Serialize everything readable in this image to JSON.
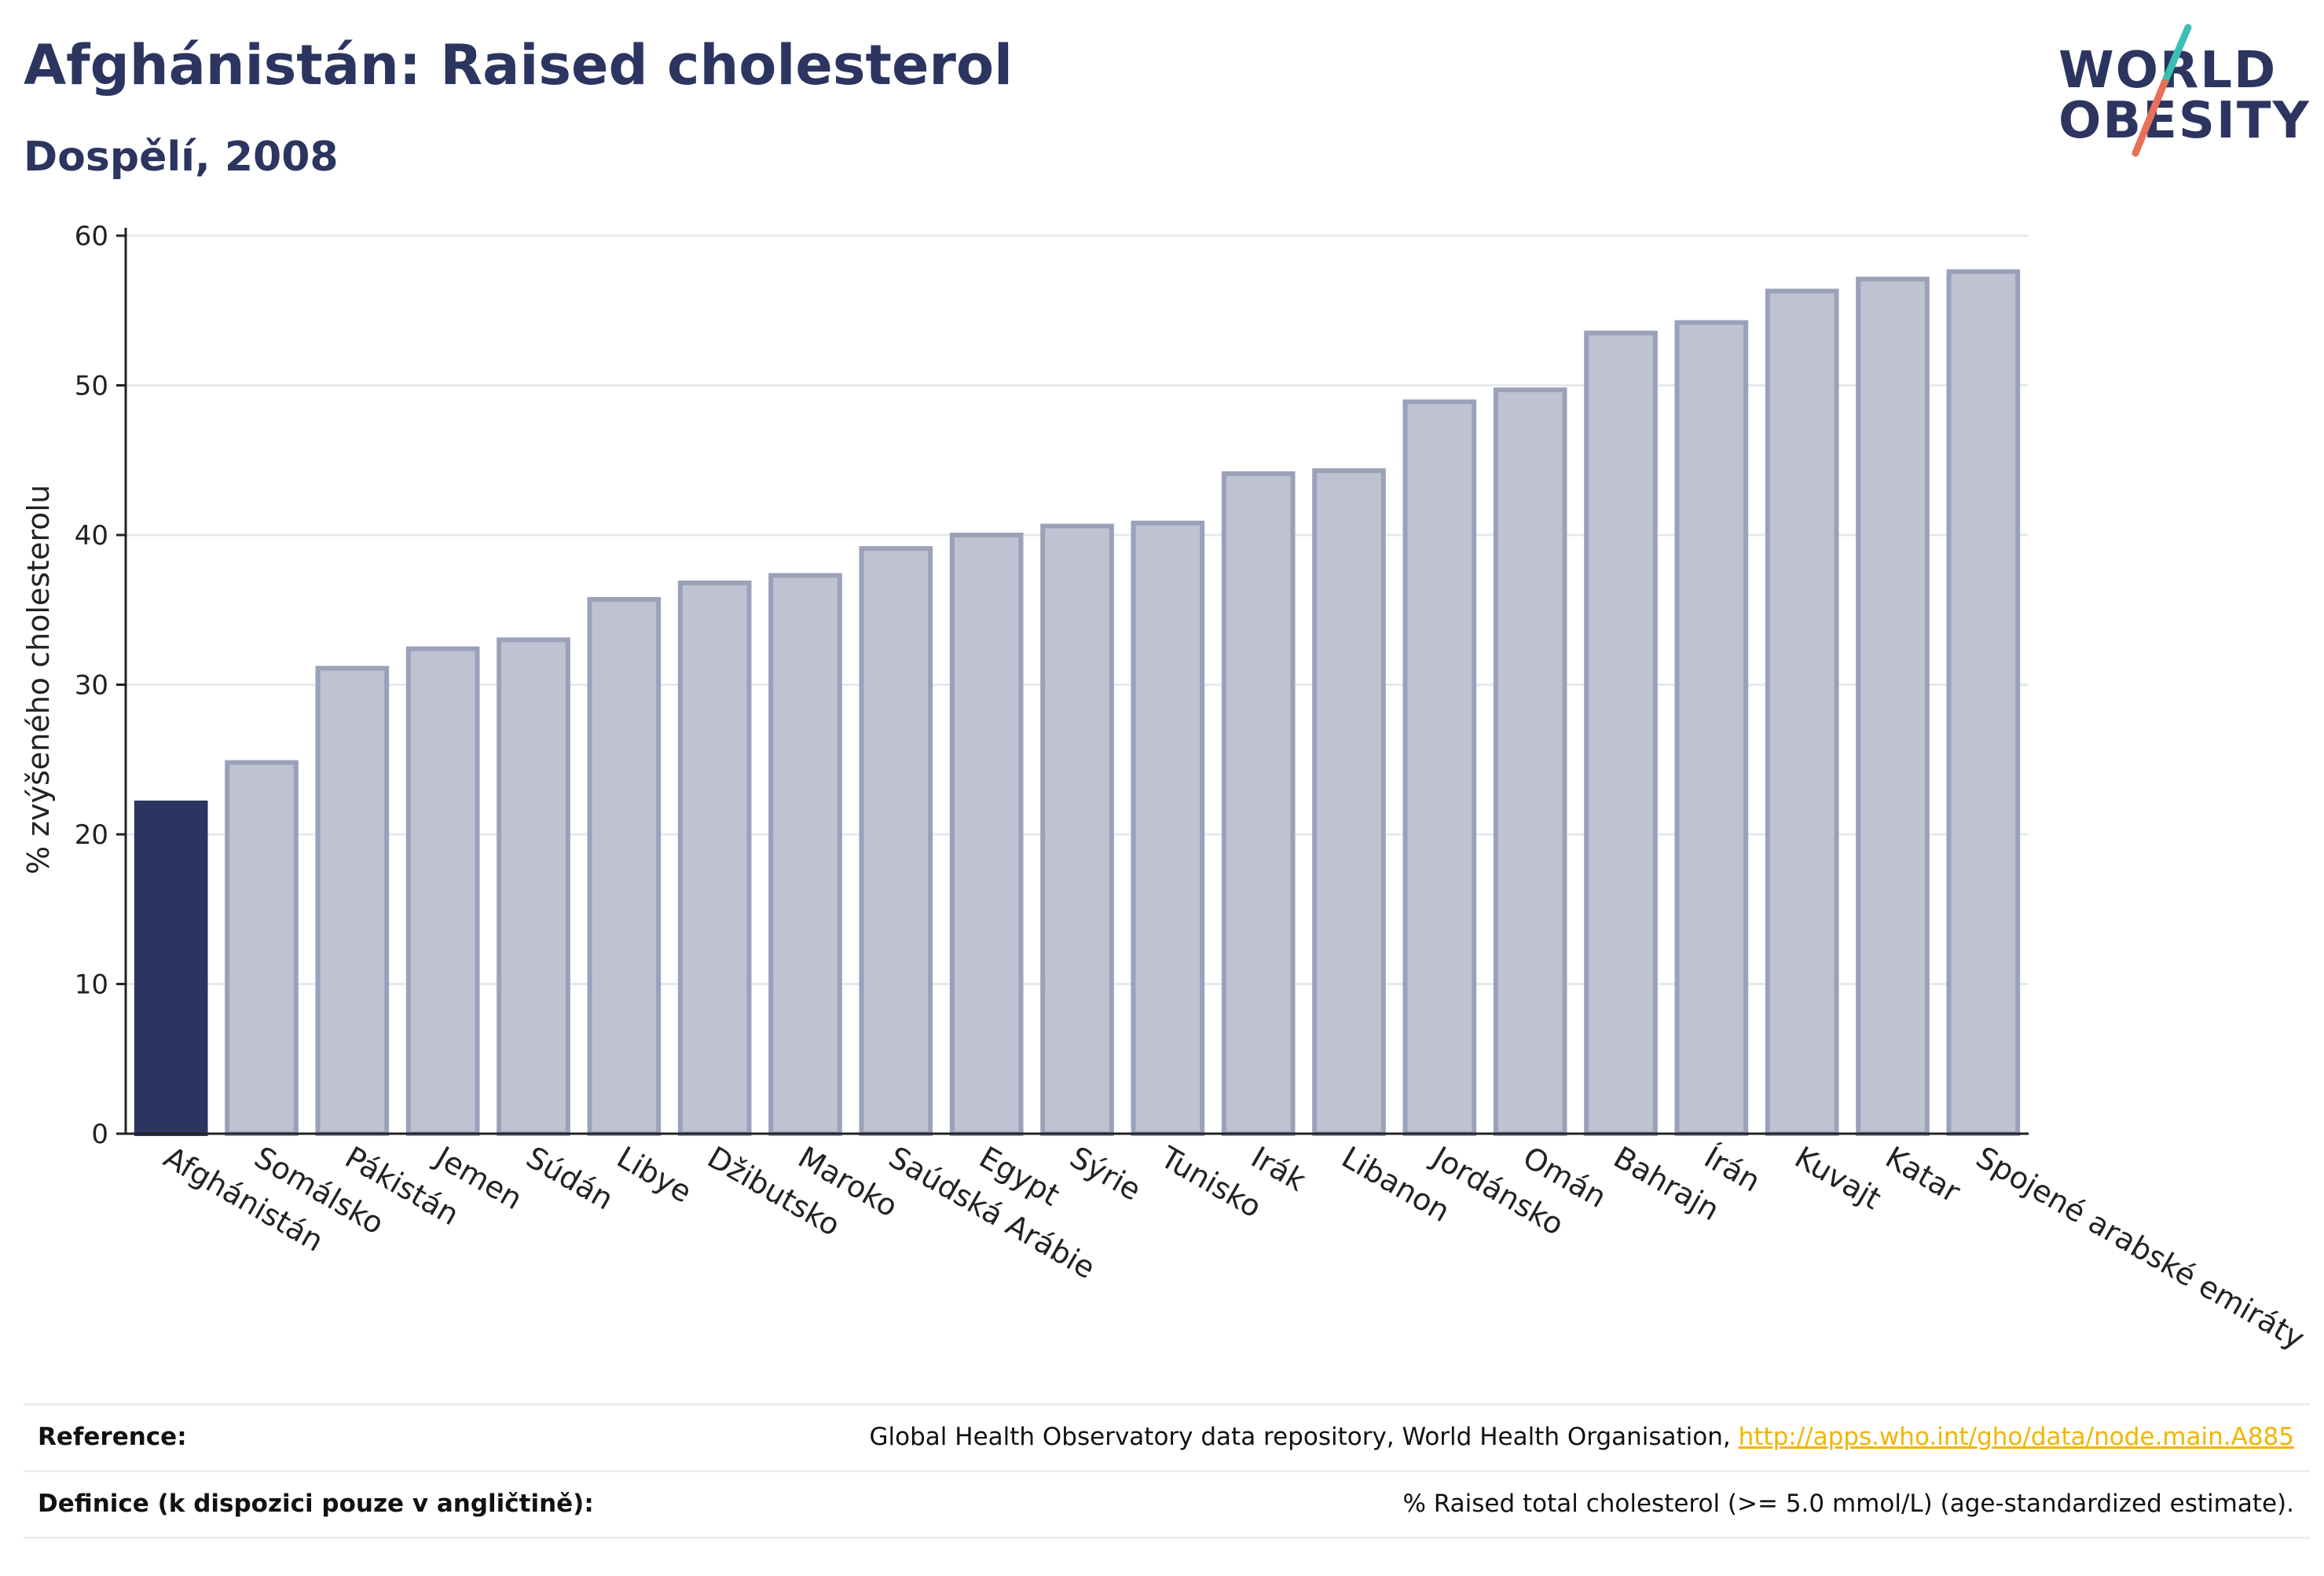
{
  "header": {
    "title": "Afghánistán: Raised cholesterol",
    "subtitle": "Dospělí, 2008"
  },
  "logo": {
    "line1": "WORLD",
    "line2": "OBESITY",
    "accent_colors": [
      "#3bbfb5",
      "#e8705a"
    ]
  },
  "colors": {
    "highlight_bar": "#2b3560",
    "bar_fill": "#bfc3d1",
    "bar_stroke": "#9aa1b8",
    "gridline": "#e8e9ee",
    "axis": "#222222",
    "link": "#f1b500"
  },
  "chart_data": {
    "type": "bar",
    "title": "Afghánistán: Raised cholesterol",
    "subtitle": "Dospělí, 2008",
    "ylabel": "% zvýšeného cholesterolu",
    "xlabel": "",
    "ylim": [
      0,
      60
    ],
    "yticks": [
      0,
      10,
      20,
      30,
      40,
      50,
      60
    ],
    "grid": true,
    "highlight_category": "Afghánistán",
    "categories": [
      "Afghánistán",
      "Somálsko",
      "Pákistán",
      "Jemen",
      "Súdán",
      "Libye",
      "Džibutsko",
      "Maroko",
      "Saúdská Arábie",
      "Egypt",
      "Sýrie",
      "Tunisko",
      "Irák",
      "Libanon",
      "Jordánsko",
      "Omán",
      "Bahrajn",
      "Írán",
      "Kuvajt",
      "Katar",
      "Spojené arabské emiráty"
    ],
    "values": [
      22.1,
      24.8,
      31.1,
      32.4,
      33.0,
      35.7,
      36.8,
      37.3,
      39.1,
      40.0,
      40.6,
      40.8,
      44.1,
      44.3,
      48.9,
      49.7,
      53.5,
      54.2,
      56.3,
      57.1,
      57.6
    ]
  },
  "footer": {
    "reference_label": "Reference:",
    "reference_text": "Global Health Observatory data repository, World Health Organisation, ",
    "reference_link": "http://apps.who.int/gho/data/node.main.A885",
    "definition_label": "Definice (k dispozici pouze v angličtině):",
    "definition_text": "% Raised total cholesterol (>= 5.0 mmol/L) (age-standardized estimate)."
  }
}
